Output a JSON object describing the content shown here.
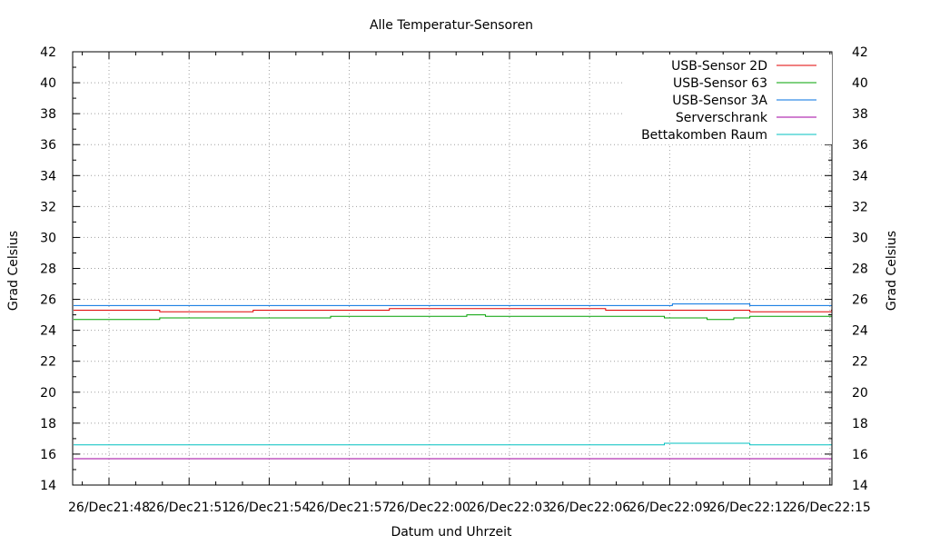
{
  "chart_data": {
    "type": "line",
    "title": "Alle Temperatur-Sensoren",
    "xlabel": "Datum und Uhrzeit",
    "ylabel": "Grad Celsius",
    "y2label": "Grad Celsius",
    "x_tick_labels": [
      "26/Dec21:48",
      "26/Dec21:51",
      "26/Dec21:54",
      "26/Dec21:57",
      "26/Dec22:00",
      "26/Dec22:03",
      "26/Dec22:06",
      "26/Dec22:09",
      "26/Dec22:12",
      "26/Dec22:15"
    ],
    "xlim_minutes": [
      0,
      27.6
    ],
    "ylim": [
      14,
      42
    ],
    "y_ticks": [
      14,
      16,
      18,
      20,
      22,
      24,
      26,
      28,
      30,
      32,
      34,
      36,
      38,
      40,
      42
    ],
    "grid": true,
    "legend_position": "top-right",
    "series": [
      {
        "name": "USB-Sensor 2D",
        "color": "#e00000",
        "x": [
          0,
          1.9,
          5.4,
          10.5,
          14.1,
          18.6,
          24.0,
          28.2
        ],
        "y": [
          25.3,
          25.2,
          25.3,
          25.4,
          25.4,
          25.3,
          25.2,
          25.3
        ]
      },
      {
        "name": "USB-Sensor 63",
        "color": "#00a000",
        "x": [
          0,
          1.9,
          5.4,
          8.3,
          10.5,
          13.4,
          14.1,
          17.7,
          20.8,
          22.4,
          23.4,
          24.0,
          28.2
        ],
        "y": [
          24.7,
          24.8,
          24.8,
          24.9,
          24.9,
          25.0,
          24.9,
          24.9,
          24.8,
          24.7,
          24.8,
          24.9,
          24.9
        ]
      },
      {
        "name": "USB-Sensor 3A",
        "color": "#0070e0",
        "x": [
          0,
          10.5,
          14.1,
          18.6,
          21.1,
          24.0,
          28.2
        ],
        "y": [
          25.6,
          25.6,
          25.6,
          25.6,
          25.7,
          25.6,
          25.6
        ]
      },
      {
        "name": "Serverschrank",
        "color": "#a000a0",
        "x": [
          0,
          28.2
        ],
        "y": [
          15.7,
          15.7
        ]
      },
      {
        "name": "Bettakomben Raum",
        "color": "#00c0c0",
        "x": [
          0,
          14.1,
          20.8,
          24.0,
          28.2
        ],
        "y": [
          16.6,
          16.6,
          16.7,
          16.6,
          16.6
        ]
      }
    ]
  }
}
